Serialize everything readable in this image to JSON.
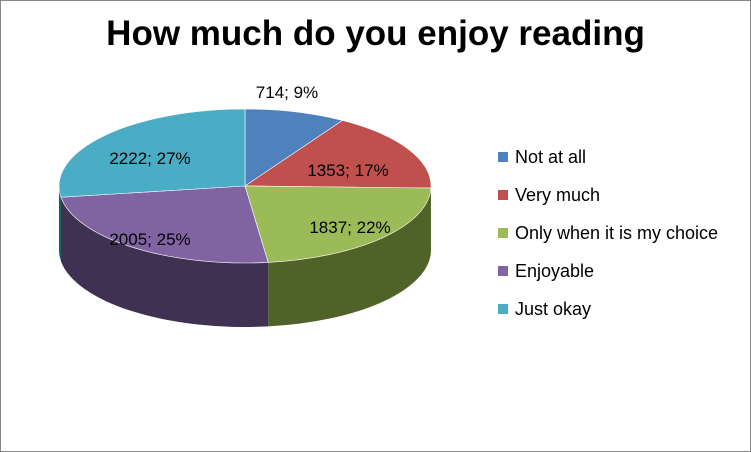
{
  "chart_data": {
    "type": "pie",
    "title": "How much do you enjoy reading",
    "slices": [
      {
        "name": "Not at all",
        "value": 714,
        "percent": 9,
        "color": "#4F81BD",
        "side_color": "#2C4D75"
      },
      {
        "name": "Very much",
        "value": 1353,
        "percent": 17,
        "color": "#C0504D",
        "side_color": "#772C2A"
      },
      {
        "name": "Only when it is my choice",
        "value": 1837,
        "percent": 22,
        "color": "#9BBB59",
        "side_color": "#4F6228"
      },
      {
        "name": "Enjoyable",
        "value": 2005,
        "percent": 25,
        "color": "#8064A2",
        "side_color": "#3F3151"
      },
      {
        "name": "Just okay",
        "value": 2222,
        "percent": 27,
        "color": "#4BACC6",
        "side_color": "#215968"
      }
    ],
    "data_labels": [
      "714; 9%",
      "1353; 17%",
      "1837; 22%",
      "2005; 25%",
      "2222; 27%"
    ],
    "legend_position": "right",
    "style": "3d-pie"
  }
}
